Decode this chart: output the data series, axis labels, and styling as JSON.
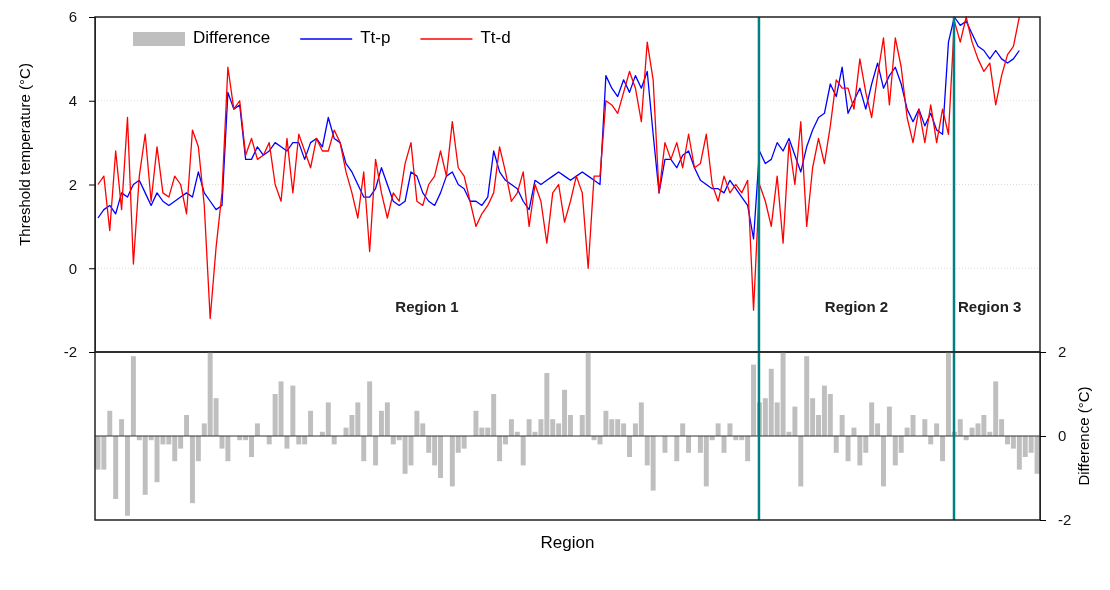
{
  "chart_data": [
    {
      "type": "line",
      "ylabel": "Threshold temperature (°C)",
      "categories": [
        null,
        null,
        null,
        null,
        null,
        null,
        null,
        null,
        null,
        null,
        null,
        null,
        null,
        null,
        null,
        null,
        null,
        null,
        null,
        null,
        null,
        null,
        null,
        null,
        null,
        null,
        null,
        null,
        null,
        null,
        null,
        null,
        null,
        null,
        null,
        null,
        null,
        null,
        null,
        null,
        null,
        null,
        null,
        null,
        null,
        null,
        null,
        null,
        null,
        null,
        null,
        null,
        null,
        null,
        null,
        null,
        null,
        null,
        null,
        null,
        null,
        null,
        null,
        null,
        null,
        null,
        null,
        null,
        null,
        null,
        null,
        null,
        null,
        null,
        null,
        null,
        null,
        null,
        null,
        null,
        null,
        null,
        null,
        null,
        null,
        null,
        null,
        null,
        null,
        null,
        null,
        null,
        null,
        null,
        null,
        null,
        null,
        null,
        null,
        null,
        null,
        null,
        null,
        null,
        null,
        null,
        null,
        null,
        null,
        null,
        null,
        null,
        null,
        null,
        null,
        null,
        null,
        null,
        null,
        null,
        null,
        null,
        null,
        null,
        null,
        null,
        null,
        null,
        null,
        null,
        null,
        null,
        null,
        null,
        null,
        null,
        null,
        null,
        null,
        null,
        null,
        null,
        null,
        null,
        null,
        null,
        null,
        null,
        null,
        null,
        null,
        null,
        null,
        null,
        null,
        null,
        null,
        null,
        null,
        null
      ],
      "series": [
        {
          "name": "Tt-p",
          "color": "#0000ff",
          "values": [
            1.2,
            1.4,
            1.5,
            1.3,
            1.8,
            1.7,
            2.0,
            2.1,
            1.8,
            1.5,
            1.8,
            1.6,
            1.5,
            1.6,
            1.7,
            1.8,
            1.7,
            2.3,
            1.8,
            1.6,
            1.4,
            1.5,
            4.2,
            3.8,
            3.9,
            2.6,
            2.6,
            2.9,
            2.7,
            2.8,
            3.0,
            2.9,
            2.8,
            3.0,
            3.0,
            2.6,
            3.0,
            3.1,
            2.9,
            3.6,
            3.1,
            3.0,
            2.5,
            2.3,
            2.0,
            1.7,
            1.7,
            1.9,
            2.4,
            2.0,
            1.6,
            1.5,
            1.6,
            2.3,
            2.2,
            1.8,
            1.6,
            1.5,
            1.8,
            2.2,
            2.3,
            2.0,
            1.9,
            1.6,
            1.6,
            1.5,
            1.7,
            2.8,
            2.3,
            2.1,
            2.0,
            1.9,
            1.6,
            1.4,
            2.1,
            2.0,
            2.1,
            2.2,
            2.3,
            2.2,
            2.1,
            2.2,
            2.3,
            2.2,
            2.1,
            2.0,
            4.6,
            4.3,
            4.1,
            4.5,
            4.2,
            4.6,
            4.3,
            4.7,
            3.2,
            1.8,
            2.6,
            2.6,
            2.4,
            2.7,
            2.8,
            2.4,
            2.1,
            2.0,
            1.9,
            1.9,
            1.8,
            2.1,
            1.9,
            1.7,
            1.5,
            0.7,
            2.8,
            2.5,
            2.6,
            3.0,
            2.8,
            3.1,
            2.7,
            2.3,
            2.9,
            3.3,
            3.6,
            3.7,
            4.4,
            4.1,
            4.8,
            3.7,
            4.0,
            4.3,
            3.8,
            4.4,
            4.9,
            4.3,
            4.6,
            4.8,
            4.4,
            3.8,
            3.5,
            3.8,
            3.4,
            3.7,
            3.3,
            3.2,
            5.4,
            6.0,
            5.8,
            5.9,
            5.6,
            5.3,
            5.2,
            5.0,
            5.2,
            5.0,
            4.9,
            5.0,
            5.2,
            null,
            null,
            null
          ]
        },
        {
          "name": "Tt-d",
          "color": "#ff0000",
          "values": [
            2.0,
            2.2,
            0.9,
            2.8,
            1.4,
            3.6,
            0.1,
            2.2,
            3.2,
            1.6,
            2.9,
            1.8,
            1.7,
            2.2,
            2.0,
            1.3,
            3.3,
            2.9,
            1.5,
            -1.2,
            0.5,
            1.8,
            4.8,
            3.8,
            4.0,
            2.7,
            3.1,
            2.6,
            2.7,
            3.0,
            2.0,
            1.6,
            3.1,
            1.8,
            3.2,
            2.8,
            2.4,
            3.1,
            2.8,
            2.8,
            3.3,
            3.0,
            2.3,
            1.8,
            1.2,
            2.3,
            0.4,
            2.6,
            1.8,
            1.2,
            1.8,
            1.6,
            2.5,
            3.0,
            1.6,
            1.5,
            2.0,
            2.2,
            2.8,
            2.2,
            3.5,
            2.4,
            2.2,
            1.6,
            1.0,
            1.3,
            1.5,
            1.8,
            2.9,
            2.3,
            1.6,
            1.8,
            2.3,
            1.0,
            2.0,
            1.6,
            0.6,
            1.8,
            2.0,
            1.1,
            1.6,
            2.2,
            1.8,
            0.0,
            2.2,
            2.2,
            4.0,
            3.9,
            3.7,
            4.2,
            4.7,
            4.3,
            3.5,
            5.4,
            4.5,
            1.8,
            3.0,
            2.6,
            3.0,
            2.4,
            3.2,
            2.4,
            2.5,
            3.2,
            2.0,
            1.6,
            2.2,
            1.8,
            2.0,
            1.8,
            2.1,
            -1.0,
            2.0,
            1.6,
            1.0,
            2.2,
            0.6,
            3.0,
            2.0,
            3.5,
            1.0,
            2.4,
            3.1,
            2.5,
            3.4,
            4.5,
            4.3,
            4.3,
            3.8,
            5.0,
            4.2,
            3.6,
            4.6,
            5.5,
            3.9,
            5.5,
            4.8,
            3.6,
            3.0,
            3.8,
            3.0,
            3.9,
            3.0,
            3.8,
            3.2,
            5.9,
            5.4,
            6.0,
            5.4,
            5.0,
            4.7,
            4.9,
            3.9,
            4.6,
            5.1,
            5.3,
            6.0,
            null,
            null,
            null
          ]
        }
      ],
      "ylim": [
        -2,
        6
      ],
      "yticks": [
        -2,
        0,
        2,
        4,
        6
      ],
      "grid": "y",
      "legend": "top left",
      "tick_labels": "y",
      "annotations": [
        "Region 1",
        "Region 2",
        "Region 3"
      ]
    },
    {
      "type": "bar",
      "xlabel": "Region",
      "ylabel": "Difference (°C)",
      "categories": [
        null,
        null,
        null,
        null,
        null,
        null,
        null,
        null,
        null,
        null,
        null,
        null,
        null,
        null,
        null,
        null,
        null,
        null,
        null,
        null,
        null,
        null,
        null,
        null,
        null,
        null,
        null,
        null,
        null,
        null,
        null,
        null,
        null,
        null,
        null,
        null,
        null,
        null,
        null,
        null,
        null,
        null,
        null,
        null,
        null,
        null,
        null,
        null,
        null,
        null,
        null,
        null,
        null,
        null,
        null,
        null,
        null,
        null,
        null,
        null,
        null,
        null,
        null,
        null,
        null,
        null,
        null,
        null,
        null,
        null,
        null,
        null,
        null,
        null,
        null,
        null,
        null,
        null,
        null,
        null,
        null,
        null,
        null,
        null,
        null,
        null,
        null,
        null,
        null,
        null,
        null,
        null,
        null,
        null,
        null,
        null,
        null,
        null,
        null,
        null,
        null,
        null,
        null,
        null,
        null,
        null,
        null,
        null,
        null,
        null,
        null,
        null,
        null,
        null,
        null,
        null,
        null,
        null,
        null,
        null,
        null,
        null,
        null,
        null,
        null,
        null,
        null,
        null,
        null,
        null,
        null,
        null,
        null,
        null,
        null,
        null,
        null,
        null,
        null,
        null,
        null,
        null,
        null,
        null,
        null,
        null,
        null,
        null,
        null,
        null,
        null,
        null,
        null,
        null,
        null,
        null,
        null,
        null,
        null,
        null
      ],
      "series": [
        {
          "name": "Difference",
          "color": "#bfbfbf",
          "values": [
            -0.8,
            -0.8,
            0.6,
            -1.5,
            0.4,
            -1.9,
            1.9,
            -0.1,
            -1.4,
            -0.1,
            -1.1,
            -0.2,
            -0.2,
            -0.6,
            -0.3,
            0.5,
            -1.6,
            -0.6,
            0.3,
            2.0,
            0.9,
            -0.3,
            -0.6,
            0,
            -0.1,
            -0.1,
            -0.5,
            0.3,
            0,
            -0.2,
            1.0,
            1.3,
            -0.3,
            1.2,
            -0.2,
            -0.2,
            0.6,
            0,
            0.1,
            0.8,
            -0.2,
            0,
            0.2,
            0.5,
            0.8,
            -0.6,
            1.3,
            -0.7,
            0.6,
            0.8,
            -0.2,
            -0.1,
            -0.9,
            -0.7,
            0.6,
            0.3,
            -0.4,
            -0.7,
            -1.0,
            0,
            -1.2,
            -0.4,
            -0.3,
            0,
            0.6,
            0.2,
            0.2,
            1.0,
            -0.6,
            -0.2,
            0.4,
            0.1,
            -0.7,
            0.4,
            0.1,
            0.4,
            1.5,
            0.4,
            0.3,
            1.1,
            0.5,
            0,
            0.5,
            2.0,
            -0.1,
            -0.2,
            0.6,
            0.4,
            0.4,
            0.3,
            -0.5,
            0.3,
            0.8,
            -0.7,
            -1.3,
            0,
            -0.4,
            0,
            -0.6,
            0.3,
            -0.4,
            0,
            -0.4,
            -1.2,
            -0.1,
            0.3,
            -0.4,
            0.3,
            -0.1,
            -0.1,
            -0.6,
            1.7,
            0.8,
            0.9,
            1.6,
            0.8,
            2.0,
            0.1,
            0.7,
            -1.2,
            1.9,
            0.9,
            0.5,
            1.2,
            1.0,
            -0.4,
            0.5,
            -0.6,
            0.2,
            -0.7,
            -0.4,
            0.8,
            0.3,
            -1.2,
            0.7,
            -0.7,
            -0.4,
            0.2,
            0.5,
            0,
            0.4,
            -0.2,
            0.3,
            -0.6,
            2.0,
            0.1,
            0.4,
            -0.1,
            0.2,
            0.3,
            0.5,
            0.1,
            1.3,
            0.4,
            -0.2,
            -0.3,
            -0.8,
            -0.5,
            -0.4,
            -0.9
          ]
        }
      ],
      "ylim": [
        -2,
        2
      ],
      "yticks": [
        -2,
        0,
        2
      ],
      "legend": "top left",
      "tick_labels": "y"
    }
  ]
}
